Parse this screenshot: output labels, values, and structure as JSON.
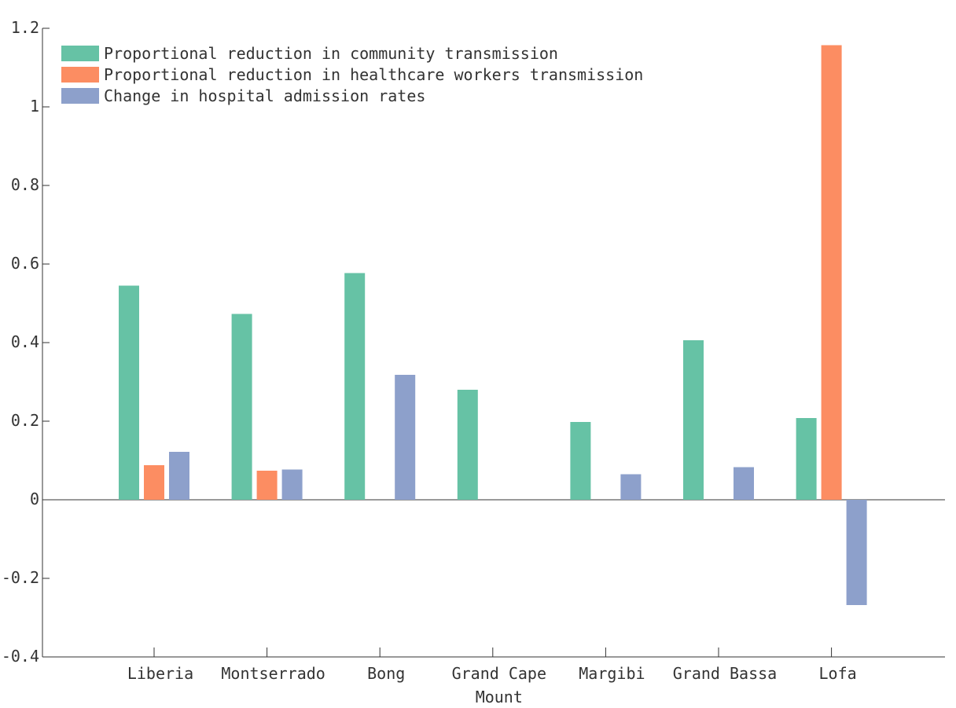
{
  "chart_data": {
    "type": "bar",
    "title": "",
    "xlabel": "",
    "ylabel": "",
    "categories": [
      "Liberia",
      "Montserrado",
      "Bong",
      "Grand Cape Mount",
      "Margibi",
      "Grand Bassa",
      "Lofa"
    ],
    "category_lines": [
      [
        "Liberia"
      ],
      [
        "Montserrado"
      ],
      [
        "Bong"
      ],
      [
        "Grand Cape",
        "Mount"
      ],
      [
        "Margibi"
      ],
      [
        "Grand Bassa"
      ],
      [
        "Lofa"
      ]
    ],
    "ylim": [
      -0.4,
      1.2
    ],
    "yticks": [
      -0.4,
      -0.2,
      0,
      0.2,
      0.4,
      0.6,
      0.8,
      1,
      1.2
    ],
    "ytick_labels": [
      "-0.4",
      "-0.2",
      "0",
      "0.2",
      "0.4",
      "0.6",
      "0.8",
      "1",
      "1.2"
    ],
    "grid": false,
    "legend_position": "top-left",
    "series": [
      {
        "name": "Proportional reduction in community transmission",
        "color": "#66c2a5",
        "values": [
          0.545,
          0.473,
          0.577,
          0.28,
          0.198,
          0.406,
          0.208
        ]
      },
      {
        "name": "Proportional reduction in healthcare workers transmission",
        "color": "#fc8d62",
        "values": [
          0.088,
          0.074,
          null,
          null,
          null,
          null,
          1.157
        ]
      },
      {
        "name": "Change in hospital admission rates",
        "color": "#8da0cb",
        "values": [
          0.122,
          0.077,
          0.318,
          null,
          0.065,
          0.083,
          -0.268
        ]
      }
    ]
  }
}
